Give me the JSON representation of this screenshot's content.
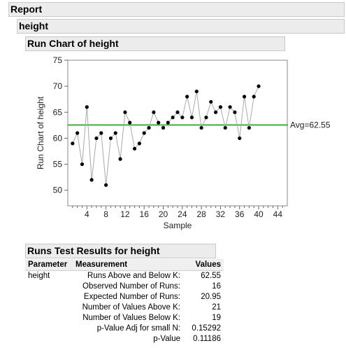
{
  "report": {
    "title": "Report"
  },
  "outline": {
    "variable": "height"
  },
  "run_chart": {
    "title": "Run Chart of height"
  },
  "chart_data": {
    "type": "line",
    "xlabel": "Sample",
    "ylabel": "Run Chart of height",
    "xlim": [
      0,
      46
    ],
    "ylim": [
      47,
      75
    ],
    "xticks": [
      4,
      8,
      12,
      16,
      20,
      24,
      28,
      32,
      36,
      40,
      44
    ],
    "yticks": [
      50,
      55,
      60,
      65,
      70,
      75
    ],
    "center_line": {
      "value": 62.55,
      "label": "Avg=62.55",
      "color": "#3fae3f"
    },
    "line_color": "#a9a9a9",
    "marker_color": "#000000",
    "x": [
      1,
      2,
      3,
      4,
      5,
      6,
      7,
      8,
      9,
      10,
      11,
      12,
      13,
      14,
      15,
      16,
      17,
      18,
      19,
      20,
      21,
      22,
      23,
      24,
      25,
      26,
      27,
      28,
      29,
      30,
      31,
      32,
      33,
      34,
      35,
      36,
      37,
      38,
      39,
      40
    ],
    "y": [
      59,
      61,
      55,
      66,
      52,
      60,
      61,
      51,
      60,
      61,
      56,
      65,
      63,
      58,
      59,
      61,
      62,
      65,
      63,
      62,
      63,
      64,
      65,
      64,
      68,
      64,
      69,
      62,
      64,
      67,
      65,
      66,
      62,
      66,
      65,
      60,
      68,
      62,
      68,
      70
    ]
  },
  "runs_test": {
    "title": "Runs Test Results for height",
    "headers": {
      "parameter": "Parameter",
      "measurement": "Measurement",
      "values": "Values"
    },
    "parameter": "height",
    "rows": [
      {
        "measurement": "Runs Above and Below K:",
        "value": "62.55"
      },
      {
        "measurement": "Observed Number of Runs:",
        "value": "16"
      },
      {
        "measurement": "Expected Number of Runs:",
        "value": "20.95"
      },
      {
        "measurement": "Number of Values Above K:",
        "value": "21"
      },
      {
        "measurement": "Number of Values Below K:",
        "value": "19"
      },
      {
        "measurement": "p-Value Adj for small N:",
        "value": "0.15292"
      },
      {
        "measurement": "p-Value",
        "value": "0.11186"
      }
    ]
  }
}
